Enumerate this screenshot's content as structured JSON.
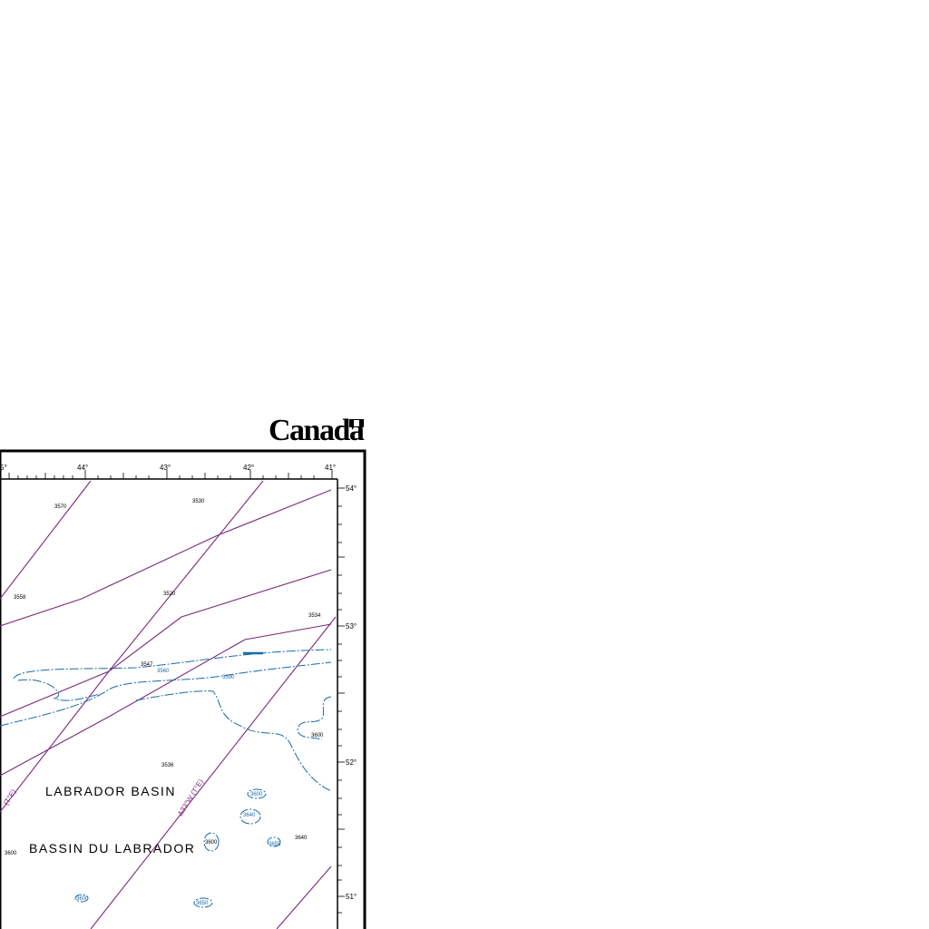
{
  "header": {
    "brand": "Canada"
  },
  "map": {
    "colors": {
      "frame": "#000000",
      "contour": "#1a6aa8",
      "lines": "#7a2a7a",
      "background": "#ffffff"
    },
    "longitude_labels": [
      "44°",
      "43°",
      "42°",
      "41°"
    ],
    "longitude_label_partial": "5°",
    "latitude_labels": [
      "54°",
      "53°",
      "52°",
      "51°"
    ],
    "features": {
      "basin_en": "LABRADOR BASIN",
      "basin_fr": "BASSIN DU LABRADOR"
    },
    "rotated_line_labels": [
      "Δ33°W (T°E)",
      "(T°E)"
    ],
    "soundings": [
      "3570",
      "3530",
      "3558",
      "3520",
      "3534",
      "3547",
      "3536",
      "3600",
      "3560",
      "3590",
      "3600",
      "3640",
      "3600",
      "3640",
      "3655",
      "3600",
      "3650",
      "3600"
    ]
  }
}
